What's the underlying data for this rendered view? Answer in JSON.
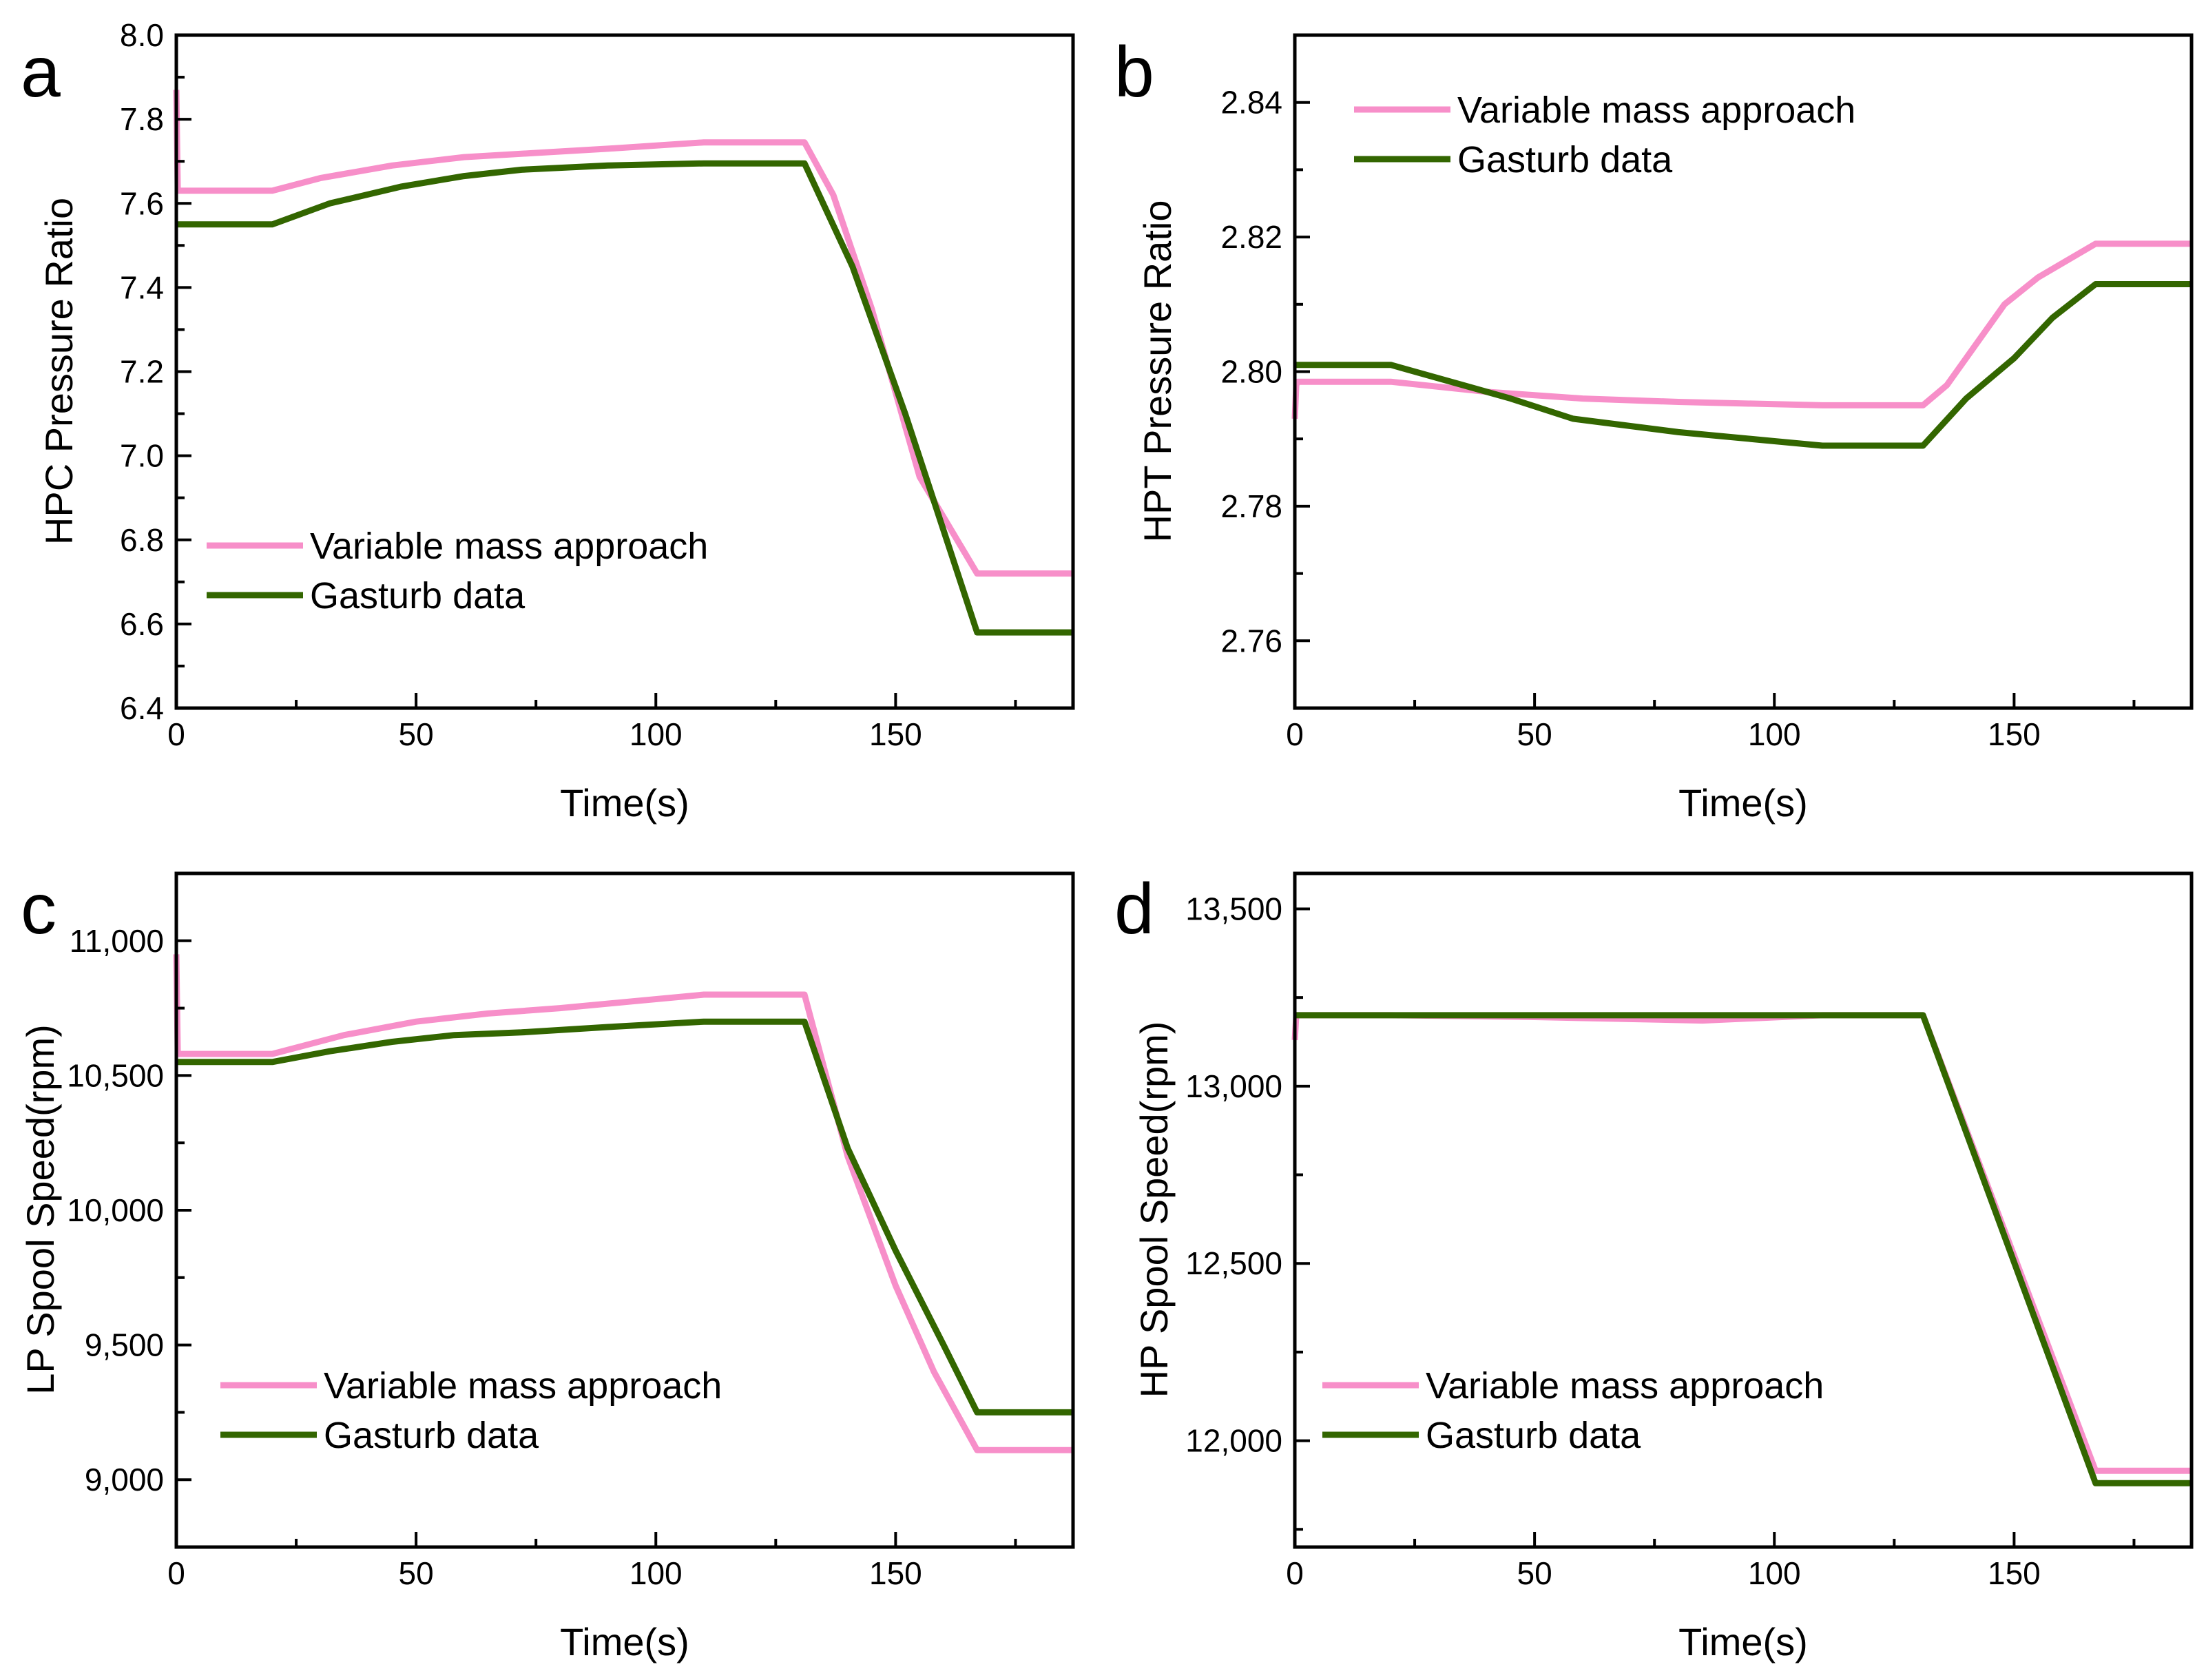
{
  "figure": {
    "colors": {
      "variable": "#f78fc9",
      "gasturb": "#336600"
    }
  },
  "chart_data": [
    {
      "id": "a",
      "type": "line",
      "panel_label": "a",
      "title": "",
      "xlabel": "Time(s)",
      "ylabel": "HPC Pressure Ratio",
      "xlim": [
        0,
        187
      ],
      "ylim": [
        6.4,
        8.0
      ],
      "xticks": [
        0,
        50,
        100,
        150
      ],
      "xtick_labels": [
        "0",
        "50",
        "100",
        "150"
      ],
      "yticks": [
        6.4,
        6.6,
        6.8,
        7.0,
        7.2,
        7.4,
        7.6,
        7.8,
        8.0
      ],
      "ytick_labels": [
        "6.4",
        "6.6",
        "6.8",
        "7.0",
        "7.2",
        "7.4",
        "7.6",
        "7.8",
        "8.0"
      ],
      "legend_position": "lower-left",
      "series": [
        {
          "name": "Variable mass approach",
          "color": "#f78fc9",
          "x": [
            0,
            0.3,
            0.6,
            20,
            30,
            45,
            60,
            75,
            90,
            110,
            131,
            137,
            145,
            155,
            167,
            187
          ],
          "y": [
            7.87,
            7.63,
            7.63,
            7.63,
            7.66,
            7.69,
            7.71,
            7.72,
            7.73,
            7.745,
            7.745,
            7.62,
            7.35,
            6.95,
            6.72,
            6.72
          ]
        },
        {
          "name": "Gasturb data",
          "color": "#336600",
          "x": [
            0,
            20,
            32,
            47,
            60,
            72,
            90,
            110,
            131,
            141,
            152,
            167,
            187
          ],
          "y": [
            7.55,
            7.55,
            7.6,
            7.64,
            7.665,
            7.68,
            7.69,
            7.695,
            7.695,
            7.45,
            7.1,
            6.58,
            6.58
          ]
        }
      ]
    },
    {
      "id": "b",
      "type": "line",
      "panel_label": "b",
      "title": "",
      "xlabel": "Time(s)",
      "ylabel": "HPT Pressure Ratio",
      "xlim": [
        0,
        187
      ],
      "ylim": [
        2.75,
        2.85
      ],
      "xticks": [
        0,
        50,
        100,
        150
      ],
      "xtick_labels": [
        "0",
        "50",
        "100",
        "150"
      ],
      "yticks": [
        2.76,
        2.78,
        2.8,
        2.82,
        2.84
      ],
      "ytick_labels": [
        "2.76",
        "2.78",
        "2.80",
        "2.82",
        "2.84"
      ],
      "legend_position": "top-left",
      "series": [
        {
          "name": "Variable mass approach",
          "color": "#f78fc9",
          "x": [
            0,
            0.3,
            0.6,
            20,
            40,
            60,
            80,
            110,
            131,
            136,
            142,
            148,
            155,
            167,
            187
          ],
          "y": [
            2.793,
            2.798,
            2.7985,
            2.7985,
            2.797,
            2.796,
            2.7955,
            2.795,
            2.795,
            2.798,
            2.804,
            2.81,
            2.814,
            2.819,
            2.819
          ]
        },
        {
          "name": "Gasturb data",
          "color": "#336600",
          "x": [
            0,
            20,
            35,
            45,
            58,
            80,
            110,
            131,
            140,
            150,
            158,
            167,
            187
          ],
          "y": [
            2.801,
            2.801,
            2.798,
            2.796,
            2.793,
            2.791,
            2.789,
            2.789,
            2.796,
            2.802,
            2.808,
            2.813,
            2.813
          ]
        }
      ]
    },
    {
      "id": "c",
      "type": "line",
      "panel_label": "c",
      "title": "",
      "xlabel": "Time(s)",
      "ylabel": "LP Spool Speed(rpm)",
      "xlim": [
        0,
        187
      ],
      "ylim": [
        8750,
        11250
      ],
      "xticks": [
        0,
        50,
        100,
        150
      ],
      "xtick_labels": [
        "0",
        "50",
        "100",
        "150"
      ],
      "yticks": [
        9000,
        9500,
        10000,
        10500,
        11000
      ],
      "ytick_labels": [
        "9,000",
        "9,500",
        "10,000",
        "10,500",
        "11,000"
      ],
      "legend_position": "lower-left",
      "series": [
        {
          "name": "Variable mass approach",
          "color": "#f78fc9",
          "x": [
            0,
            0.3,
            0.6,
            20,
            35,
            50,
            65,
            80,
            95,
            110,
            131,
            140,
            150,
            158,
            167,
            187
          ],
          "y": [
            10950,
            10580,
            10580,
            10580,
            10650,
            10700,
            10730,
            10750,
            10775,
            10800,
            10800,
            10200,
            9720,
            9400,
            9110,
            9110
          ]
        },
        {
          "name": "Gasturb data",
          "color": "#336600",
          "x": [
            0,
            20,
            32,
            45,
            58,
            72,
            90,
            110,
            131,
            140,
            150,
            160,
            167,
            187
          ],
          "y": [
            10550,
            10550,
            10590,
            10625,
            10650,
            10660,
            10680,
            10700,
            10700,
            10230,
            9850,
            9500,
            9250,
            9250
          ]
        }
      ]
    },
    {
      "id": "d",
      "type": "line",
      "panel_label": "d",
      "title": "",
      "xlabel": "Time(s)",
      "ylabel": "HP Spool Speed(rpm)",
      "xlim": [
        0,
        187
      ],
      "ylim": [
        11700,
        13600
      ],
      "xticks": [
        0,
        50,
        100,
        150
      ],
      "xtick_labels": [
        "0",
        "50",
        "100",
        "150"
      ],
      "yticks": [
        12000,
        12500,
        13000,
        13500
      ],
      "ytick_labels": [
        "12,000",
        "12,500",
        "13,000",
        "13,500"
      ],
      "legend_position": "lower-left",
      "series": [
        {
          "name": "Variable mass approach",
          "color": "#f78fc9",
          "x": [
            0,
            0.3,
            0.6,
            20,
            50,
            85,
            110,
            131,
            167,
            187
          ],
          "y": [
            13130,
            13200,
            13200,
            13200,
            13195,
            13185,
            13200,
            13200,
            11915,
            11915
          ]
        },
        {
          "name": "Gasturb data",
          "color": "#336600",
          "x": [
            0,
            131,
            167,
            187
          ],
          "y": [
            13200,
            13200,
            11880,
            11880
          ]
        }
      ]
    }
  ]
}
